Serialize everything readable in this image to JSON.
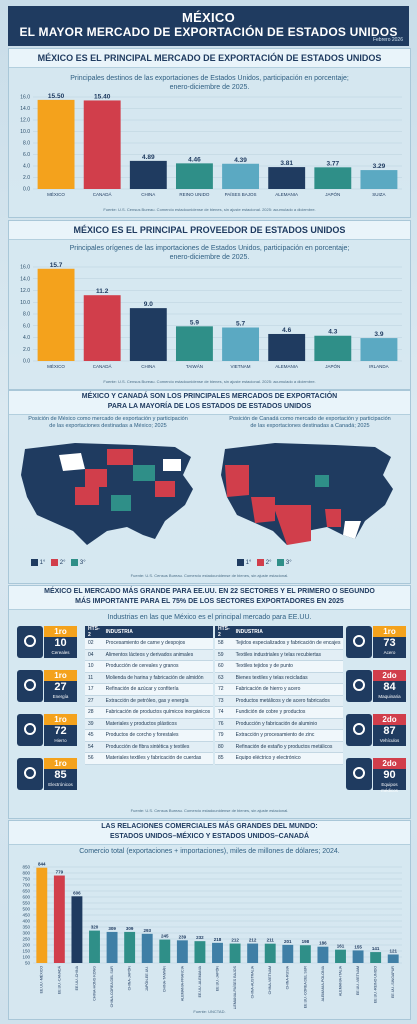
{
  "header": {
    "title1": "MÉXICO",
    "title2": "EL MAYOR MERCADO DE EXPORTACIÓN DE ESTADOS UNIDOS",
    "date": "Febrero 2026"
  },
  "colors": {
    "orange": "#f4a21c",
    "red": "#d13e4b",
    "navy": "#1f3b60",
    "teal": "#2f8f88",
    "lightblue": "#9cc6d9"
  },
  "panel1": {
    "title": "MÉXICO ES EL PRINCIPAL MERCADO DE EXPORTACIÓN DE ESTADOS UNIDOS",
    "subtitle1": "Principales destinos de las exportaciones de Estados Unidos, participación en porcentaje;",
    "subtitle2": "enero-diciembre de 2025.",
    "source": "Fuente: U.S. Census Bureau. Comercio estadounidense de bienes, sin ajuste estacional. 2025: acumulado a diciembre."
  },
  "panel2": {
    "title": "MÉXICO ES EL PRINCIPAL PROVEEDOR DE ESTADOS UNIDOS",
    "subtitle1": "Principales orígenes de las importaciones de Estados Unidos, participación en porcentaje;",
    "subtitle2": "enero-diciembre de 2025.",
    "source": "Fuente: U.S. Census Bureau. Comercio estadounidense de bienes, sin ajuste estacional. 2025: acumulado a diciembre."
  },
  "panel3": {
    "title1": "MÉXICO Y CANADÁ SON LOS PRINCIPALES MERCADOS DE EXPORTACIÓN",
    "title2": "PARA LA MAYORÍA DE LOS ESTADOS DE ESTADOS UNIDOS",
    "left_caption1": "Posición de México como mercado de exportación y participación",
    "left_caption2": "de las exportaciones destinadas a México; 2025",
    "right_caption1": "Posición de Canadá como mercado de exportación y participación",
    "right_caption2": "de las exportaciones destinadas a Canadá; 2025",
    "legend": [
      "1°",
      "2°",
      "3°"
    ],
    "source": "Fuente: U.S. Census Bureau. Comercio estadounidense de bienes, sin ajuste estacional."
  },
  "panel4": {
    "title1": "MÉXICO EL MERCADO MÁS GRANDE PARA EE.UU. EN 22 SECTORES Y EL PRIMERO O SEGUNDO",
    "title2": "MÁS IMPORTANTE PARA EL 75% DE LOS SECTORES EXPORTADORES EN 2025",
    "subtitle": "Industrias en las que México es el principal mercado para EE.UU.",
    "col_hts": "HTS-2",
    "col_ind": "INDUSTRIA",
    "left_rows": [
      [
        "02",
        "Procesamiento de carne y despojos"
      ],
      [
        "04",
        "Alimentos lácteos y derivados animales"
      ],
      [
        "10",
        "Producción de cereales y granos"
      ],
      [
        "11",
        "Molienda de harina y fabricación de almidón"
      ],
      [
        "17",
        "Refinación de azúcar y confitería"
      ],
      [
        "27",
        "Extracción de petróleo, gas y energía"
      ],
      [
        "28",
        "Fabricación de productos químicos inorgánicos"
      ],
      [
        "39",
        "Materiales y productos plásticos"
      ],
      [
        "45",
        "Productos de corcho y forestales"
      ],
      [
        "54",
        "Producción de fibra sintética y textiles"
      ],
      [
        "56",
        "Materiales textiles y fabricación de cuerdas"
      ]
    ],
    "right_rows": [
      [
        "58",
        "Tejidos especializados y fabricación de encajes"
      ],
      [
        "59",
        "Textiles industriales y telas recubiertas"
      ],
      [
        "60",
        "Textiles tejidos y de punto"
      ],
      [
        "63",
        "Bienes textiles y telas recicladas"
      ],
      [
        "72",
        "Fabricación de hierro y acero"
      ],
      [
        "73",
        "Productos metálicos y de acero fabricados"
      ],
      [
        "74",
        "Fundición de cobre y productos"
      ],
      [
        "76",
        "Producción y fabricación de aluminio"
      ],
      [
        "79",
        "Extracción y procesamiento de zinc"
      ],
      [
        "80",
        "Refinación de estaño y productos metálicos"
      ],
      [
        "85",
        "Equipo eléctrico y electrónico"
      ]
    ],
    "cards_left": [
      {
        "rank": "1ro",
        "num": "10",
        "label": "Cereales",
        "icon": "wheat-icon"
      },
      {
        "rank": "1ro",
        "num": "27",
        "label": "Energía",
        "icon": "energy-icon"
      },
      {
        "rank": "1ro",
        "num": "72",
        "label": "Hierro",
        "icon": "iron-icon"
      },
      {
        "rank": "1ro",
        "num": "85",
        "label": "Electrónicos",
        "icon": "electronics-icon"
      }
    ],
    "cards_right": [
      {
        "rank": "1ro",
        "num": "73",
        "label": "Acero",
        "icon": "steel-icon"
      },
      {
        "rank": "2do",
        "num": "84",
        "label": "Maquinaria",
        "icon": "machinery-icon"
      },
      {
        "rank": "2do",
        "num": "87",
        "label": "Vehículos",
        "icon": "vehicle-icon"
      },
      {
        "rank": "2do",
        "num": "90",
        "label": "Equipos médicos",
        "icon": "medical-icon"
      }
    ],
    "source": "Fuente: U.S. Census Bureau. Comercio estadounidense de bienes, sin ajuste estacional."
  },
  "panel5": {
    "title1": "LAS RELACIONES COMERCIALES MÁS GRANDES DEL MUNDO:",
    "title2": "ESTADOS UNIDOS–MÉXICO Y ESTADOS UNIDOS–CANADÁ",
    "subtitle": "Comercio total (exportaciones + importaciones), miles de millones de dólares; 2024.",
    "source": "Fuente: UNCTAD."
  },
  "chart_data": [
    {
      "type": "bar",
      "categories": [
        "MÉXICO",
        "CANADÁ",
        "CHINA",
        "REINO UNIDO",
        "PAÍSES BAJOS",
        "ALEMANIA",
        "JAPÓN",
        "SUIZA"
      ],
      "values": [
        15.5,
        15.4,
        4.89,
        4.46,
        4.39,
        3.81,
        3.77,
        3.29
      ],
      "labels": [
        "15.50",
        "15.40",
        "4.89",
        "4.46",
        "4.39",
        "3.81",
        "3.77",
        "3.29"
      ],
      "colors": [
        "#f4a21c",
        "#d13e4b",
        "#1f3b60",
        "#2f8f88",
        "#5ba9c2",
        "#1f3b60",
        "#2f8f88",
        "#5ba9c2"
      ],
      "ylim": [
        0,
        16
      ],
      "yticks": [
        "0.0",
        "2.0",
        "4.0",
        "6.0",
        "8.0",
        "10.0",
        "12.0",
        "14.0",
        "16.0"
      ]
    },
    {
      "type": "bar",
      "categories": [
        "MÉXICO",
        "CANADÁ",
        "CHINA",
        "TAIWÁN",
        "VIETNAM",
        "ALEMANIA",
        "JAPÓN",
        "IRLANDA"
      ],
      "values": [
        15.7,
        11.2,
        9.0,
        5.9,
        5.7,
        4.6,
        4.3,
        3.9
      ],
      "labels": [
        "15.7",
        "11.2",
        "9.0",
        "5.9",
        "5.7",
        "4.6",
        "4.3",
        "3.9"
      ],
      "colors": [
        "#f4a21c",
        "#d13e4b",
        "#1f3b60",
        "#2f8f88",
        "#5ba9c2",
        "#1f3b60",
        "#2f8f88",
        "#5ba9c2"
      ],
      "ylim": [
        0,
        16
      ],
      "yticks": [
        "0.0",
        "2.0",
        "4.0",
        "6.0",
        "8.0",
        "10.0",
        "12.0",
        "14.0",
        "16.0"
      ]
    },
    {
      "type": "bar",
      "categories": [
        "EE.UU.-MÉXICO",
        "EE.UU.-CANADÁ",
        "EE.UU.-CHINA",
        "CHINA-HONG KONG",
        "CHINA-COREA DEL SUR",
        "CHINA-JAPÓN",
        "JAPÓN-EE.UU.",
        "CHINA-TAIWÁN",
        "ALEMANIA-FRANCIA",
        "EE.UU.-ALEMANIA",
        "EE.UU.-JAPÓN",
        "ALEMANIA-PAÍSES BAJOS",
        "CHINA-AUSTRALIA",
        "CHINA-VIETNAM",
        "CHINA-RUSIA",
        "EE.UU.-COREA DEL SUR",
        "ALEMANIA-POLONIA",
        "ALEMANIA-ITALIA",
        "EE.UU.-VIETNAM",
        "EE.UU.-REINO UNIDO",
        "EE.UU.-SINGAPUR"
      ],
      "values": [
        844,
        779,
        606,
        320,
        309,
        309,
        293,
        245,
        239,
        232,
        218,
        212,
        212,
        211,
        201,
        198,
        186,
        161,
        155,
        141,
        121
      ],
      "ylim": [
        50,
        850
      ],
      "yticks": [
        "50",
        "100",
        "150",
        "200",
        "250",
        "300",
        "350",
        "400",
        "450",
        "500",
        "550",
        "600",
        "650",
        "700",
        "750",
        "800",
        "850"
      ]
    }
  ]
}
